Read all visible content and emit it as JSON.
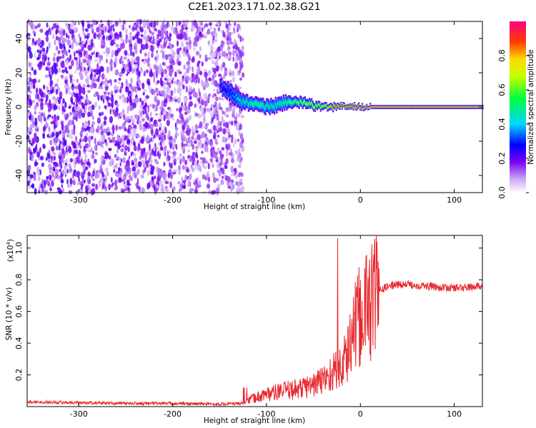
{
  "title": "C2E1.2023.171.02.38.G21",
  "chart_data": [
    {
      "type": "heatmap",
      "xlabel": "Height of straight line (km)",
      "ylabel": "Frequency (Hz)",
      "xlim": [
        -355,
        130
      ],
      "ylim": [
        -50,
        50
      ],
      "xticks": [
        -300,
        -200,
        -100,
        0,
        100
      ],
      "yticks": [
        -40,
        -20,
        0,
        20,
        40
      ],
      "colorbar": {
        "label": "Normalized spectral amplitude",
        "range": [
          0,
          1
        ],
        "ticks": [
          0.0,
          0.2,
          0.4,
          0.6,
          0.8
        ]
      },
      "signal_track": {
        "x": [
          -150,
          -140,
          -130,
          -120,
          -110,
          -100,
          -90,
          -80,
          -70,
          -60,
          -50,
          -40,
          -30,
          -20,
          -10,
          0,
          10,
          130
        ],
        "freq_center": [
          12,
          9,
          4,
          2,
          1,
          0,
          1,
          3,
          3,
          2,
          1,
          0,
          0,
          0.5,
          0.5,
          0,
          0,
          0
        ],
        "freq_halfwidth": [
          4,
          5,
          5,
          4,
          4,
          4,
          4,
          4,
          3,
          3,
          2.5,
          2,
          2,
          1.5,
          1.5,
          1.5,
          1.2,
          1.2
        ],
        "amplitude": [
          0.25,
          0.3,
          0.45,
          0.5,
          0.55,
          0.5,
          0.5,
          0.55,
          0.6,
          0.65,
          0.7,
          0.75,
          0.85,
          0.9,
          0.9,
          0.95,
          0.95,
          0.95
        ]
      },
      "noise_region_x": [
        -355,
        -125
      ]
    },
    {
      "type": "line",
      "xlabel": "Height of straight line (km)",
      "ylabel": "SNR (10 * v/v)",
      "scale_label": "(x10",
      "scale_exp": "4",
      "scale_close": ")",
      "xlim": [
        -355,
        130
      ],
      "ylim": [
        0,
        10800
      ],
      "xticks": [
        -300,
        -200,
        -100,
        0,
        100
      ],
      "yticks": [
        2000,
        4000,
        6000,
        8000,
        10000
      ],
      "ytick_labels": [
        "0.2",
        "0.4",
        "0.6",
        "0.8",
        "1.0"
      ],
      "series": [
        {
          "color": "#e8252a",
          "x": [
            -355,
            -300,
            -250,
            -200,
            -150,
            -125,
            -115,
            -100,
            -80,
            -60,
            -45,
            -35,
            -25,
            -20,
            -15,
            -10,
            -5,
            0,
            10,
            20,
            30,
            40,
            50,
            70,
            90,
            110,
            130
          ],
          "y": [
            300,
            250,
            200,
            200,
            150,
            200,
            500,
            800,
            1000,
            1200,
            1500,
            1900,
            2300,
            2600,
            3100,
            4200,
            5000,
            5700,
            6700,
            7300,
            7600,
            7700,
            7700,
            7600,
            7500,
            7500,
            7600
          ]
        }
      ]
    }
  ]
}
